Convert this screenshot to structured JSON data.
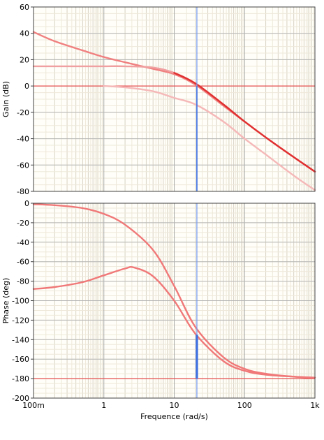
{
  "chart_data": [
    {
      "type": "line",
      "title": "",
      "xlabel": "",
      "ylabel": "Gain (dB)",
      "xscale": "log",
      "xlim": [
        0.1,
        1000
      ],
      "ylim": [
        -80,
        60
      ],
      "grid": true,
      "x_tick_labels": [],
      "y_ticks": [
        {
          "v": 60,
          "label": "60"
        },
        {
          "v": 40,
          "label": "40"
        },
        {
          "v": 20,
          "label": "20"
        },
        {
          "v": 0,
          "label": "0"
        },
        {
          "v": -20,
          "label": "-20"
        },
        {
          "v": -40,
          "label": "-40"
        },
        {
          "v": -60,
          "label": "-60"
        },
        {
          "v": -80,
          "label": "-80"
        }
      ],
      "reference_line": {
        "y": 0,
        "color": "#e85050"
      },
      "marker": {
        "x": 21,
        "from": -80,
        "to": 0,
        "color": "#3d6fe0"
      },
      "series": [
        {
          "color": "#f08080",
          "x": [
            0.1,
            0.2,
            0.5,
            1,
            2,
            5,
            10,
            20,
            50,
            100,
            200,
            500,
            1000
          ],
          "y": [
            41,
            34,
            27,
            22,
            18,
            13,
            9,
            1,
            -15,
            -27,
            -39,
            -54,
            -65
          ]
        },
        {
          "color": "#f0a0a0",
          "x": [
            0.1,
            0.2,
            0.5,
            1,
            2,
            5,
            10,
            20,
            50,
            100,
            200,
            500,
            1000
          ],
          "y": [
            15,
            15,
            15,
            15,
            15,
            14,
            10,
            2,
            -14,
            -27,
            -39,
            -54,
            -65
          ]
        },
        {
          "color": "#e03030",
          "x": [
            10,
            20,
            50,
            100,
            200,
            500,
            1000
          ],
          "y": [
            10,
            2,
            -14,
            -27,
            -39,
            -54,
            -65
          ]
        },
        {
          "color": "#f5b8b8",
          "x": [
            1,
            2,
            5,
            10,
            20,
            50,
            100,
            200,
            500,
            1000
          ],
          "y": [
            0,
            -1,
            -4,
            -9,
            -14,
            -27,
            -40,
            -52,
            -68,
            -79
          ]
        }
      ]
    },
    {
      "type": "line",
      "title": "",
      "xlabel": "Frequence (rad/s)",
      "ylabel": "Phase (deg)",
      "xscale": "log",
      "xlim": [
        0.1,
        1000
      ],
      "ylim": [
        -200,
        0
      ],
      "grid": true,
      "x_tick_labels": [
        {
          "v": 0.1,
          "label": "100m"
        },
        {
          "v": 1,
          "label": "1"
        },
        {
          "v": 10,
          "label": "10"
        },
        {
          "v": 100,
          "label": "100"
        },
        {
          "v": 1000,
          "label": "1k"
        }
      ],
      "y_ticks": [
        {
          "v": 0,
          "label": "0"
        },
        {
          "v": -20,
          "label": "-20"
        },
        {
          "v": -40,
          "label": "-40"
        },
        {
          "v": -60,
          "label": "-60"
        },
        {
          "v": -80,
          "label": "-80"
        },
        {
          "v": -100,
          "label": "-100"
        },
        {
          "v": -120,
          "label": "-120"
        },
        {
          "v": -140,
          "label": "-140"
        },
        {
          "v": -160,
          "label": "-160"
        },
        {
          "v": -180,
          "label": "-180"
        },
        {
          "v": -200,
          "label": "-200"
        }
      ],
      "reference_line": {
        "y": -180,
        "color": "#e85050"
      },
      "marker": {
        "x": 21,
        "from": -135,
        "to": -180,
        "color": "#3d6fe0"
      },
      "series": [
        {
          "color": "#f07878",
          "x": [
            0.1,
            0.2,
            0.5,
            1,
            2,
            5,
            10,
            20,
            50,
            100,
            200,
            500,
            1000
          ],
          "y": [
            -1,
            -2,
            -5,
            -11,
            -22,
            -48,
            -85,
            -127,
            -158,
            -170,
            -175,
            -178,
            -179
          ]
        },
        {
          "color": "#f07878",
          "x": [
            0.1,
            0.2,
            0.5,
            1,
            2,
            2.7,
            5,
            10,
            20,
            50,
            100,
            200,
            500,
            1000
          ],
          "y": [
            -88,
            -86,
            -81,
            -74,
            -67,
            -66,
            -75,
            -100,
            -134,
            -162,
            -172,
            -176,
            -178,
            -179
          ]
        }
      ]
    }
  ]
}
